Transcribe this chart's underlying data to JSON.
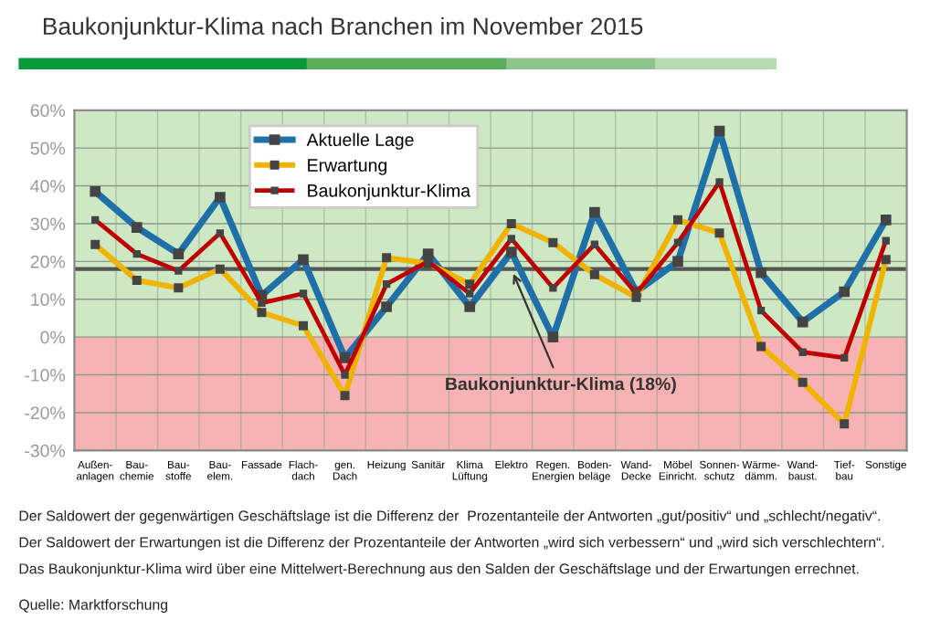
{
  "chart_data": {
    "type": "line",
    "title": "Baukonjunktur-Klima nach Branchen im November 2015",
    "categories": [
      "Außen-\nanlagen",
      "Bau-\nchemie",
      "Bau-\nstoffe",
      "Bau-\nelem.",
      "Fassade",
      "Flach-\ndach",
      "gen.\nDach",
      "Heizung",
      "Sanitär",
      "Klima\nLüftung",
      "Elektro",
      "Regen.\nEnergien",
      "Boden-\nbeläge",
      "Wand-\nDecke",
      "Möbel\nEinricht.",
      "Sonnen-\nschutz",
      "Wärme-\ndämm.",
      "Wand-\nbaust.",
      "Tief-\nbau",
      "Sonstige"
    ],
    "series": [
      {
        "name": "Aktuelle Lage",
        "color": "#1f6fa8",
        "values": [
          38.5,
          29,
          22,
          37,
          11,
          20.5,
          -5.5,
          8,
          22,
          8,
          22.5,
          0,
          33,
          12,
          20,
          54.5,
          17,
          4,
          12,
          31
        ]
      },
      {
        "name": "Erwartung",
        "color": "#f0b400",
        "values": [
          24.5,
          15,
          13,
          18,
          6.5,
          3,
          -15.5,
          21,
          19.5,
          14,
          30,
          25,
          16.5,
          10.5,
          31,
          27.5,
          -2.5,
          -12,
          -23,
          20.5
        ]
      },
      {
        "name": "Baukonjunktur-Klima",
        "color": "#c00000",
        "values": [
          31,
          22,
          17.5,
          27.5,
          9,
          11.5,
          -10,
          14,
          20,
          11.5,
          26,
          13,
          24.5,
          11.5,
          25,
          41,
          7,
          -4,
          -5.5,
          25.5
        ]
      }
    ],
    "ylim": [
      -30,
      60
    ],
    "yticks": [
      {
        "value": -30,
        "label": "-30%"
      },
      {
        "value": -20,
        "label": "-20%"
      },
      {
        "value": -10,
        "label": "-10%"
      },
      {
        "value": 0,
        "label": "0%"
      },
      {
        "value": 10,
        "label": "10%"
      },
      {
        "value": 20,
        "label": "20%"
      },
      {
        "value": 30,
        "label": "30%"
      },
      {
        "value": 40,
        "label": "40%"
      },
      {
        "value": 50,
        "label": "50%"
      },
      {
        "value": 60,
        "label": "60%"
      }
    ],
    "grid": true,
    "legend": "top left",
    "marker": "square",
    "line_style": "solid",
    "ref_lines": [
      {
        "axis": "y",
        "value": 18,
        "color": "#555555"
      }
    ],
    "bands": [
      {
        "axis": "y",
        "from": 0,
        "to": 60,
        "color": "#cfe8c4"
      },
      {
        "axis": "y",
        "from": -30,
        "to": 0,
        "color": "#f7b3b3"
      }
    ],
    "annotations": [
      {
        "text": "Baukonjunktur-Klima (18%)",
        "x": "Elektro",
        "y": 18
      },
      "Der Saldowert der gegenwärtigen Geschäftslage ist die Differenz der  Prozentanteile der Antworten „gut/positiv“ und „schlecht/negativ“.",
      "Der Saldowert der Erwartungen ist die Differenz der Prozentanteile der Antworten „wird sich verbessern“ und „wird sich verschlechtern“.",
      "Das Baukonjunktur-Klima wird über eine Mittelwert-Berechnung aus den Salden der Geschäftslage und der Erwartungen errechnet.",
      "Quelle: Marktforschung"
    ]
  }
}
